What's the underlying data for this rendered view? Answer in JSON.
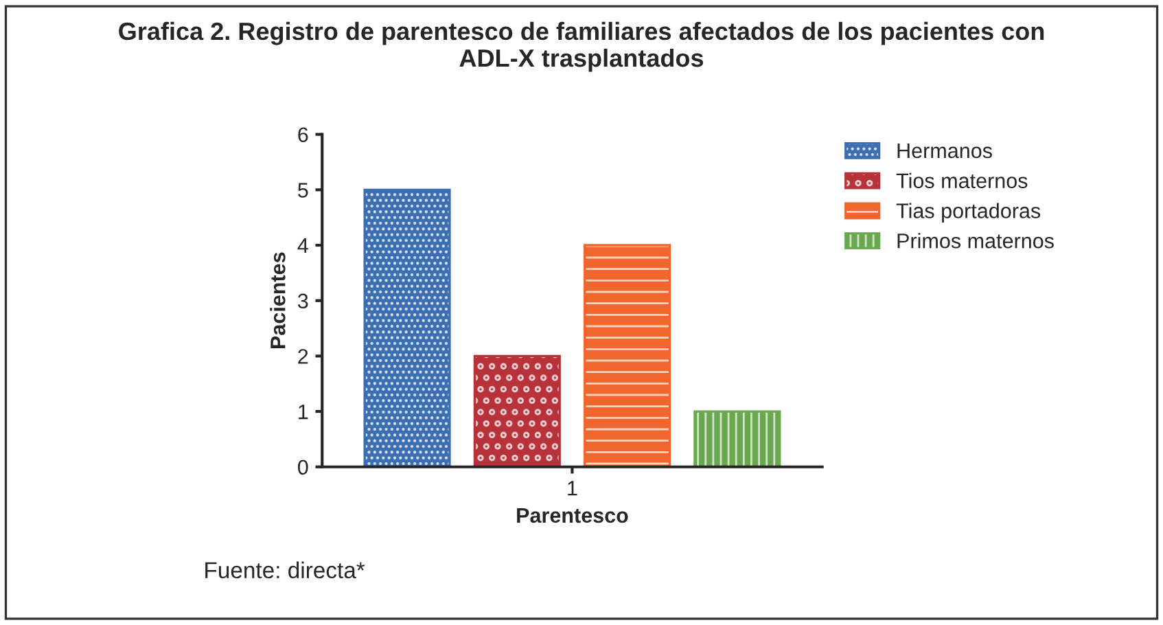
{
  "chart_data": {
    "type": "bar",
    "title": "Grafica 2. Registro de parentesco de familiares afectados de los pacientes con\nADL-X trasplantados",
    "categories": [
      "1"
    ],
    "xlabel": "Parentesco",
    "ylabel": "Pacientes",
    "series": [
      {
        "name": "Hermanos",
        "color": "#3b6fb2",
        "values": [
          5
        ]
      },
      {
        "name": "Tios maternos",
        "color": "#b8323c",
        "values": [
          2
        ]
      },
      {
        "name": "Tias portadoras",
        "color": "#f0662c",
        "values": [
          4
        ]
      },
      {
        "name": "Primos maternos",
        "color": "#6aa84f",
        "values": [
          1
        ]
      }
    ],
    "ylim": [
      0,
      6
    ],
    "yticks": [
      0,
      1,
      2,
      3,
      4,
      5,
      6
    ],
    "grid": false,
    "legend": "right",
    "annotations": [
      "Fuente: directa*"
    ]
  }
}
